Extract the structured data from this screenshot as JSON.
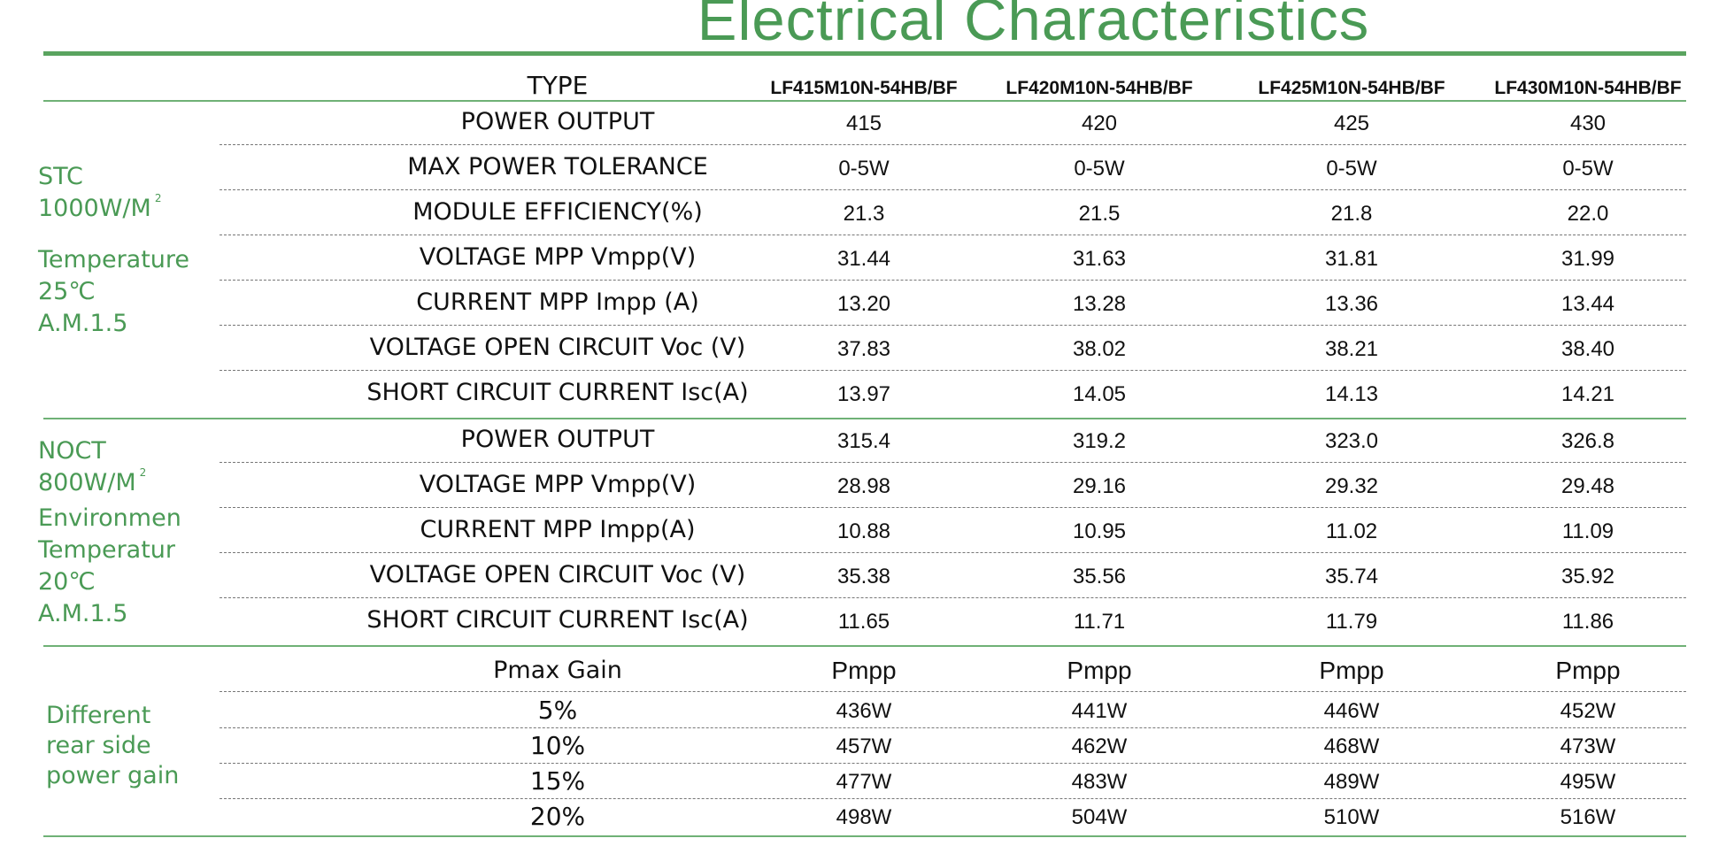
{
  "title": "Electrical Characteristics",
  "header": {
    "label": "TYPE",
    "models": [
      "LF415M10N-54HB/BF",
      "LF420M10N-54HB/BF",
      "LF425M10N-54HB/BF",
      "LF430M10N-54HB/BF"
    ]
  },
  "stc": {
    "side_lines": [
      "STC",
      "1000W/M",
      "Temperature",
      "25℃",
      "A.M.1.5"
    ],
    "superscript": "2",
    "rows": [
      {
        "label": "POWER OUTPUT",
        "values": [
          "415",
          "420",
          "425",
          "430"
        ]
      },
      {
        "label": "MAX POWER TOLERANCE",
        "values": [
          "0-5W",
          "0-5W",
          "0-5W",
          "0-5W"
        ]
      },
      {
        "label": "MODULE EFFICIENCY(%)",
        "values": [
          "21.3",
          "21.5",
          "21.8",
          "22.0"
        ]
      },
      {
        "label": "VOLTAGE MPP Vmpp(V)",
        "values": [
          "31.44",
          "31.63",
          "31.81",
          "31.99"
        ]
      },
      {
        "label": "CURRENT MPP Impp (A)",
        "values": [
          "13.20",
          "13.28",
          "13.36",
          "13.44"
        ]
      },
      {
        "label": "VOLTAGE OPEN CIRCUIT Voc (V)",
        "values": [
          "37.83",
          "38.02",
          "38.21",
          "38.40"
        ]
      },
      {
        "label": "SHORT CIRCUIT CURRENT Isc(A)",
        "values": [
          "13.97",
          "14.05",
          "14.13",
          "14.21"
        ]
      }
    ]
  },
  "noct": {
    "side_lines": [
      "NOCT",
      "800W/M",
      "Environmen",
      "Temperatur",
      "20℃",
      "A.M.1.5"
    ],
    "superscript": "2",
    "rows": [
      {
        "label": "POWER OUTPUT",
        "values": [
          "315.4",
          "319.2",
          "323.0",
          "326.8"
        ]
      },
      {
        "label": "VOLTAGE MPP Vmpp(V)",
        "values": [
          "28.98",
          "29.16",
          "29.32",
          "29.48"
        ]
      },
      {
        "label": "CURRENT MPP Impp(A)",
        "values": [
          "10.88",
          "10.95",
          "11.02",
          "11.09"
        ]
      },
      {
        "label": "VOLTAGE OPEN CIRCUIT Voc (V)",
        "values": [
          "35.38",
          "35.56",
          "35.74",
          "35.92"
        ]
      },
      {
        "label": "SHORT CIRCUIT CURRENT Isc(A)",
        "values": [
          "11.65",
          "11.71",
          "11.79",
          "11.86"
        ]
      }
    ]
  },
  "gain": {
    "side_lines": [
      "Different",
      "rear side",
      "power gain"
    ],
    "header_label": "Pmax Gain",
    "header_values": [
      "Pmpp",
      "Pmpp",
      "Pmpp",
      "Pmpp"
    ],
    "rows": [
      {
        "label": "5%",
        "values": [
          "436W",
          "441W",
          "446W",
          "452W"
        ]
      },
      {
        "label": "10%",
        "values": [
          "457W",
          "462W",
          "468W",
          "473W"
        ]
      },
      {
        "label": "15%",
        "values": [
          "477W",
          "483W",
          "489W",
          "495W"
        ]
      },
      {
        "label": "20%",
        "values": [
          "498W",
          "504W",
          "510W",
          "516W"
        ]
      }
    ]
  }
}
